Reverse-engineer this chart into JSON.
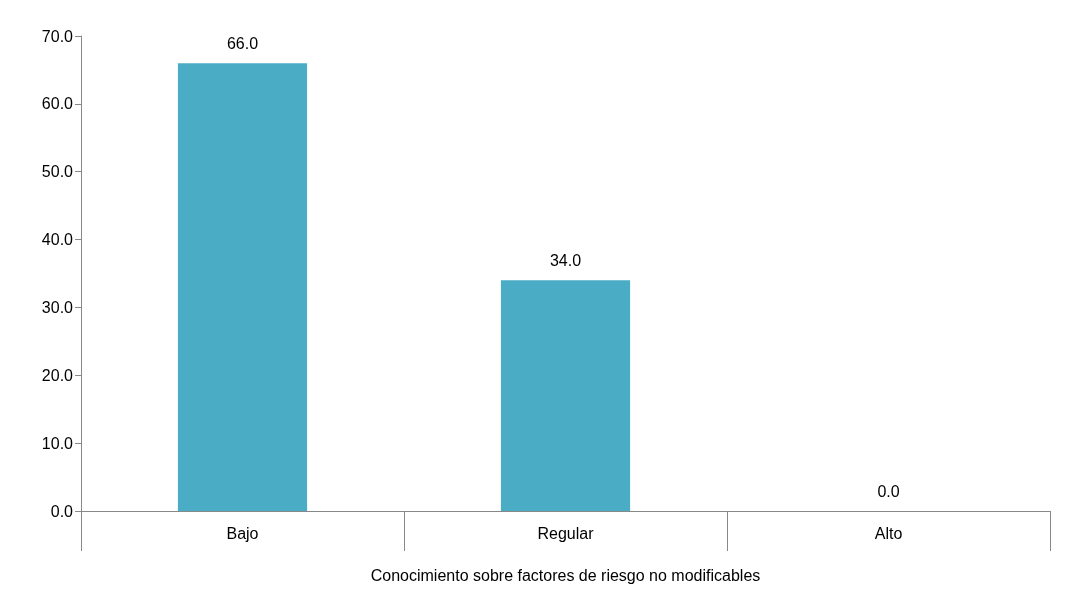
{
  "chart_data": {
    "type": "bar",
    "xlabel": "Conocimiento sobre factores de riesgo no modificables",
    "categories": [
      "Bajo",
      "Regular",
      "Alto"
    ],
    "values": [
      66,
      34,
      0
    ],
    "color": "#4bacc6",
    "value_labels": [
      "66.0",
      "34.0",
      "0.0"
    ],
    "ylim": [
      0,
      70
    ],
    "yticks": [
      {
        "value": 0,
        "label": "0.0"
      },
      {
        "value": 10,
        "label": "10.0"
      },
      {
        "value": 20,
        "label": "20.0"
      },
      {
        "value": 30,
        "label": "30.0"
      },
      {
        "value": 40,
        "label": "40.0"
      },
      {
        "value": 50,
        "label": "50.0"
      },
      {
        "value": 60,
        "label": "60.0"
      },
      {
        "value": 70,
        "label": "70.0"
      }
    ],
    "grid": false
  }
}
